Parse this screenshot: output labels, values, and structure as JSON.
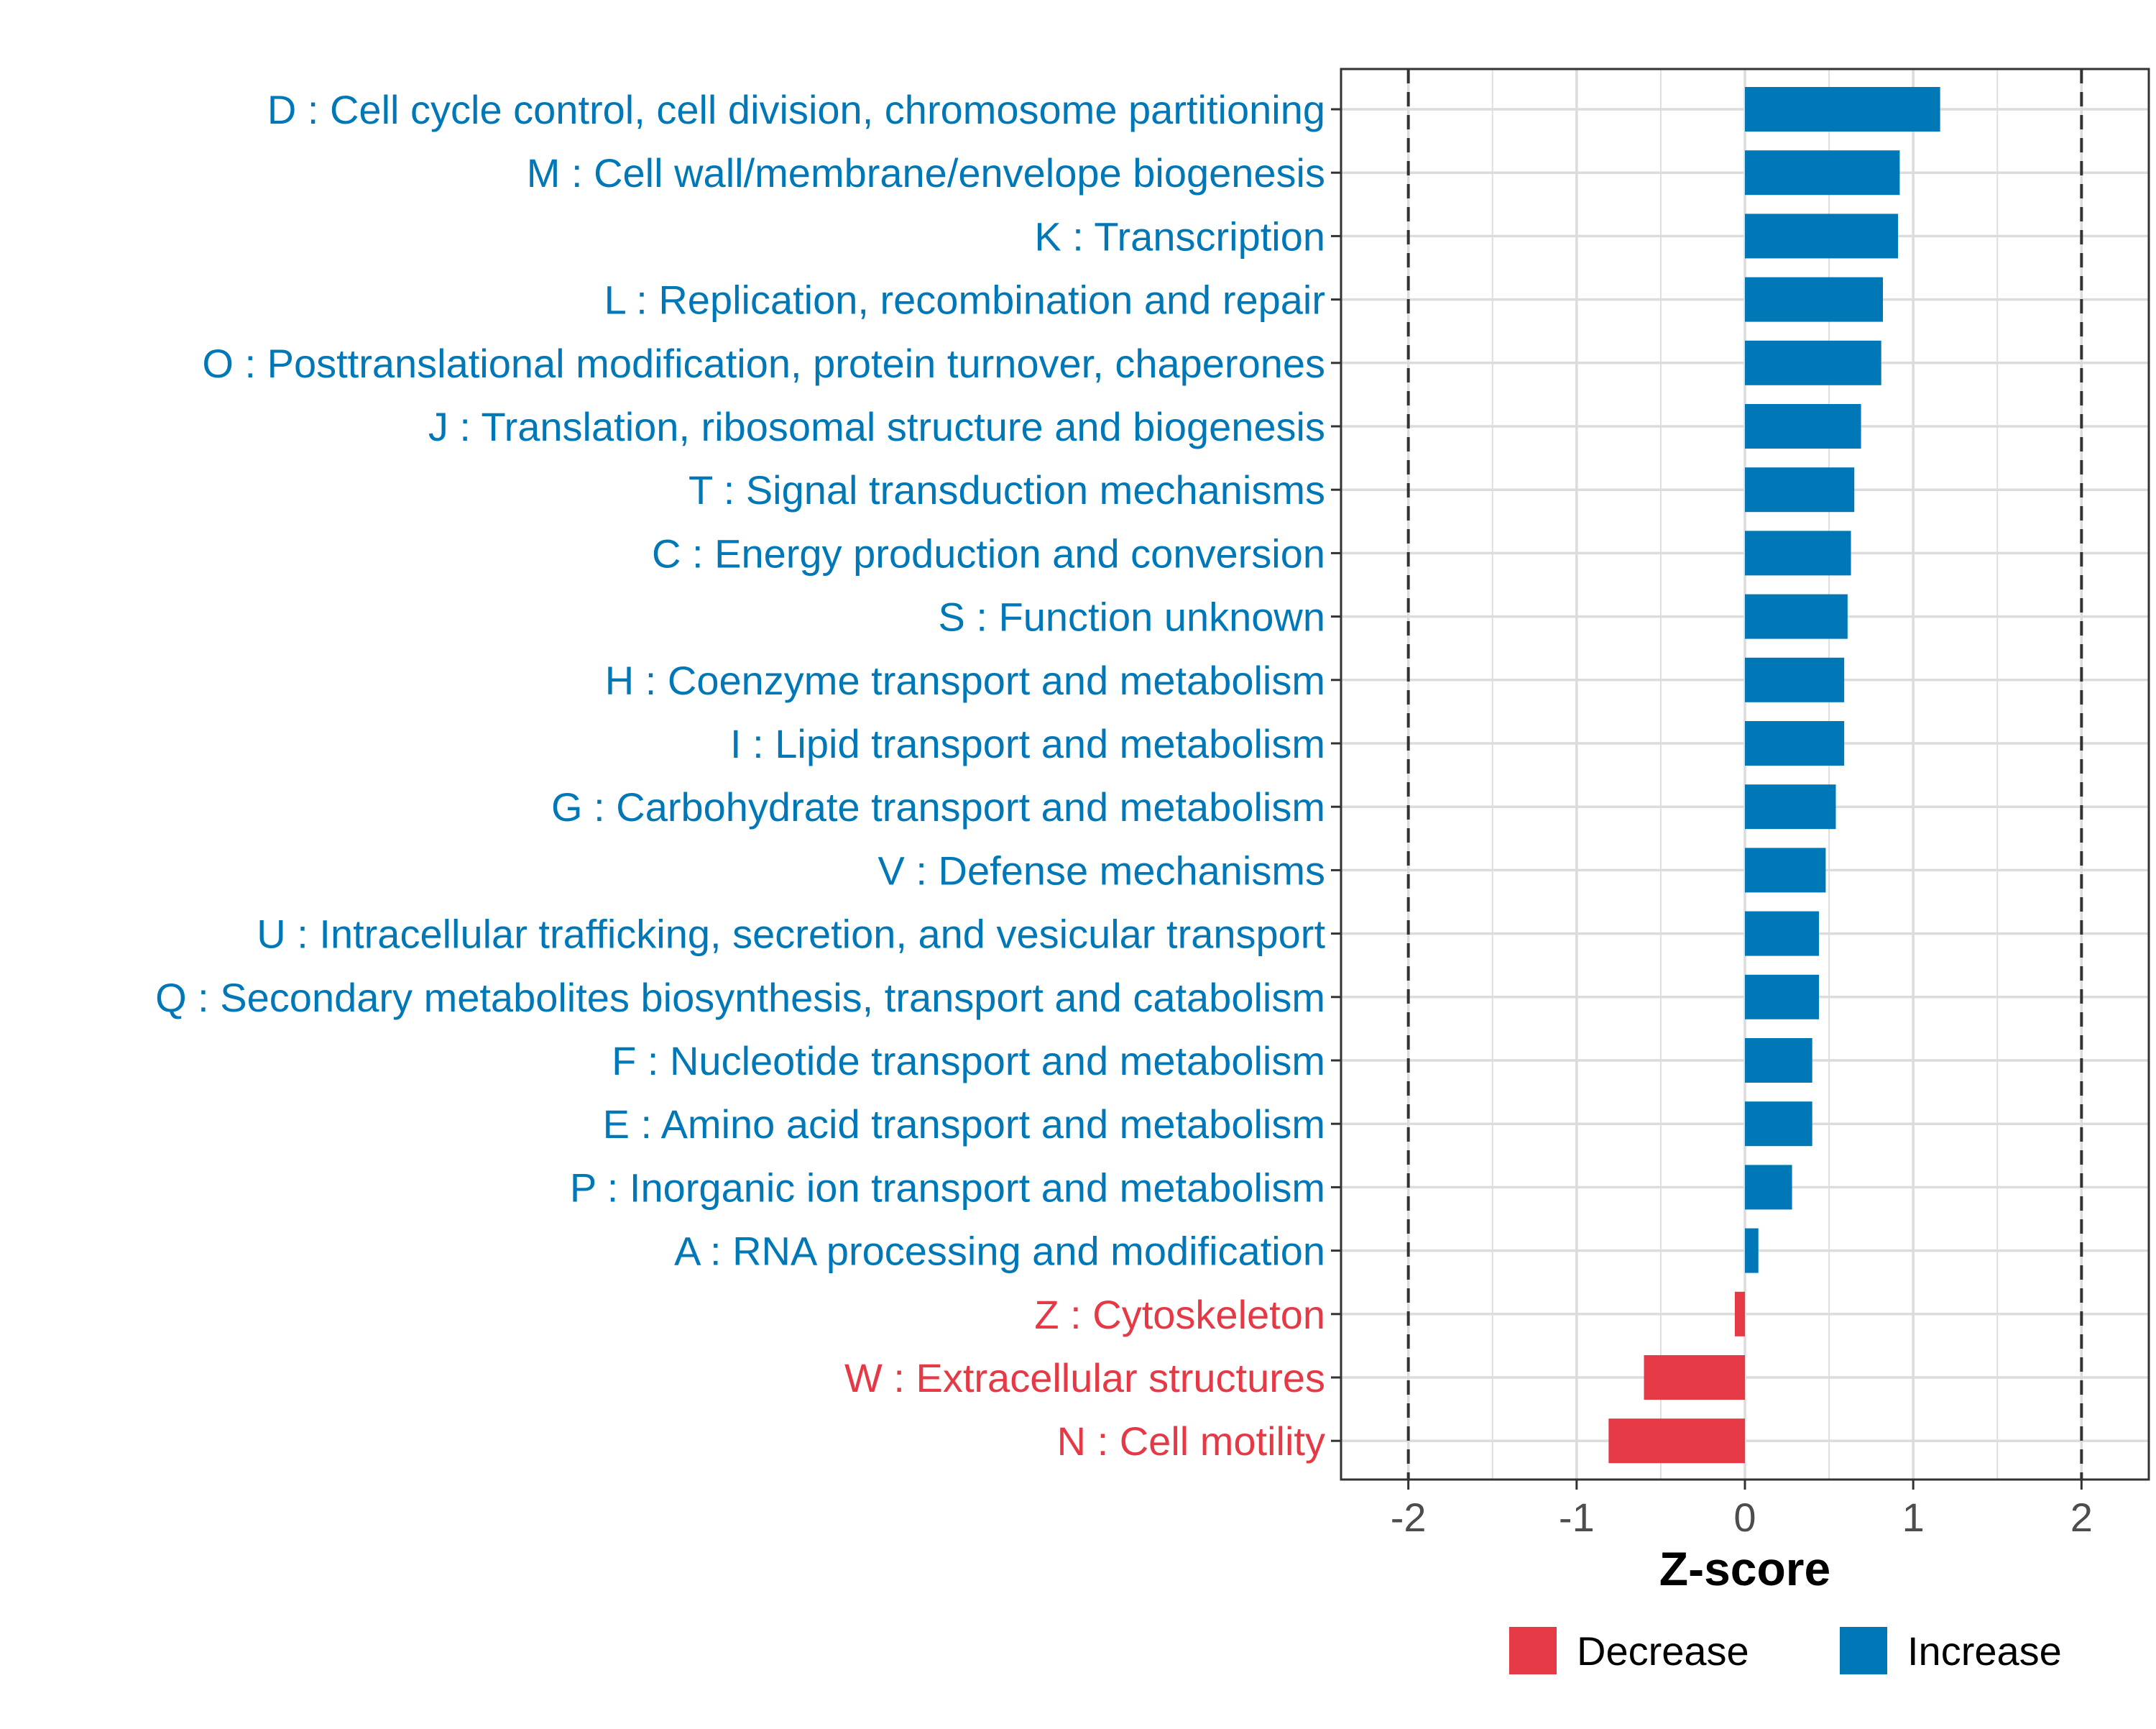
{
  "chart_data": {
    "type": "bar",
    "orientation": "horizontal",
    "title": "",
    "xlabel": "Z-score",
    "ylabel": "",
    "xlim": [
      -2.4,
      2.4
    ],
    "xticks": [
      -2,
      -1,
      0,
      1,
      2
    ],
    "xtick_labels": [
      "-2",
      "-1",
      "0",
      "1",
      "2"
    ],
    "reference_lines": [
      -2,
      2
    ],
    "grid": true,
    "legend_position": "bottom",
    "colors": {
      "Decrease": "#E63946",
      "Increase": "#0077B6"
    },
    "legend": [
      {
        "name": "Decrease",
        "color": "#E63946"
      },
      {
        "name": "Increase",
        "color": "#0077B6"
      }
    ],
    "categories": [
      "D : Cell cycle control, cell division, chromosome partitioning",
      "M : Cell wall/membrane/envelope biogenesis",
      "K : Transcription",
      "L : Replication, recombination and repair",
      "O : Posttranslational modification, protein turnover, chaperones",
      "J : Translation, ribosomal structure and biogenesis",
      "T : Signal transduction mechanisms",
      "C : Energy production and conversion",
      "S : Function unknown",
      "H : Coenzyme transport and metabolism",
      "I : Lipid transport and metabolism",
      "G : Carbohydrate transport and metabolism",
      "V : Defense mechanisms",
      "U : Intracellular trafficking, secretion, and vesicular transport",
      "Q : Secondary metabolites biosynthesis, transport and catabolism",
      "F : Nucleotide transport and metabolism",
      "E : Amino acid transport and metabolism",
      "P : Inorganic ion transport and metabolism",
      "A : RNA processing and modification",
      "Z : Cytoskeleton",
      "W : Extracellular structures",
      "N : Cell motility"
    ],
    "values": [
      1.16,
      0.92,
      0.91,
      0.82,
      0.81,
      0.69,
      0.65,
      0.63,
      0.61,
      0.59,
      0.59,
      0.54,
      0.48,
      0.44,
      0.44,
      0.4,
      0.4,
      0.28,
      0.08,
      -0.06,
      -0.6,
      -0.81
    ],
    "groups": [
      "Increase",
      "Increase",
      "Increase",
      "Increase",
      "Increase",
      "Increase",
      "Increase",
      "Increase",
      "Increase",
      "Increase",
      "Increase",
      "Increase",
      "Increase",
      "Increase",
      "Increase",
      "Increase",
      "Increase",
      "Increase",
      "Increase",
      "Decrease",
      "Decrease",
      "Decrease"
    ]
  }
}
